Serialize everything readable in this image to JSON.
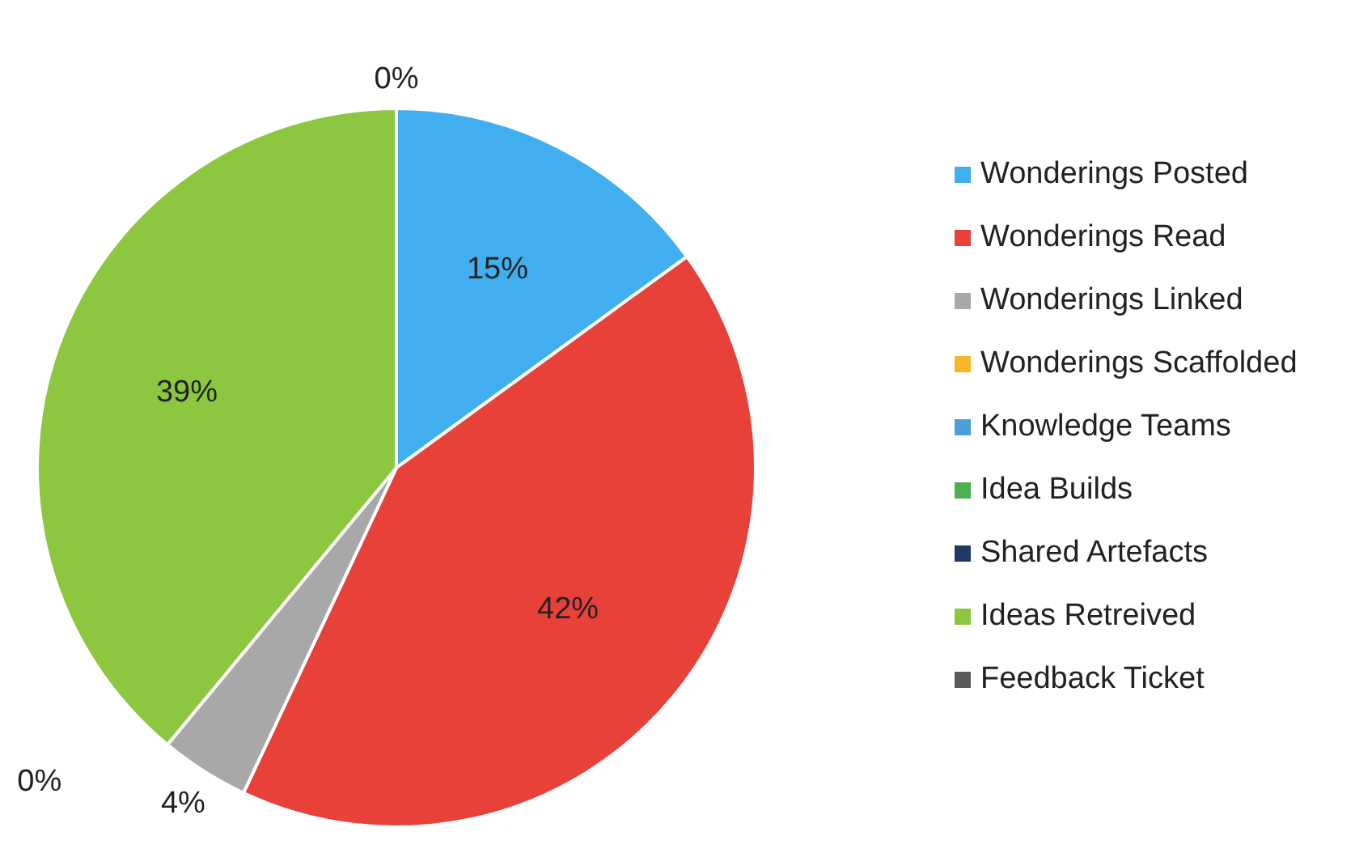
{
  "chart_data": {
    "type": "pie",
    "categories": [
      "Wonderings Posted",
      "Wonderings Read",
      "Wonderings Linked",
      "Wonderings Scaffolded",
      "Knowledge Teams",
      "Idea Builds",
      "Shared Artefacts",
      "Ideas Retreived",
      "Feedback Ticket"
    ],
    "values": [
      15,
      42,
      4,
      0,
      0,
      0,
      0,
      39,
      0
    ],
    "colors": [
      "#41aef0",
      "#e8413a",
      "#a8a8a8",
      "#f7b52c",
      "#4a9fd8",
      "#4caf50",
      "#1f3864",
      "#8dc63f",
      "#5a5a5a"
    ],
    "value_labels": [
      "15%",
      "42%",
      "4%",
      "0%",
      null,
      null,
      null,
      "39%",
      "0%"
    ],
    "legend": "right"
  }
}
